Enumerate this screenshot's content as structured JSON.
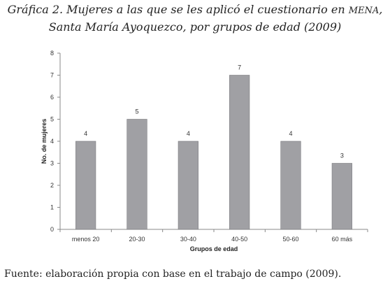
{
  "caption": {
    "line1_prefix": "Gráfica 2. Mujeres a las que se les aplicó el cuestionario en ",
    "line1_acronym": "MENA",
    "line1_suffix": ",",
    "line2": "Santa María Ayoquezco, por grupos de edad (2009)"
  },
  "source": "Fuente: elaboración propia con base en el trabajo de campo (2009).",
  "chart_data": {
    "type": "bar",
    "categories": [
      "menos 20",
      "20-30",
      "30-40",
      "40-50",
      "50-60",
      "60 más"
    ],
    "values": [
      4,
      5,
      4,
      7,
      4,
      3
    ],
    "xlabel": "Grupos de edad",
    "ylabel": "No. de mujeres",
    "ylim": [
      0,
      8
    ],
    "yticks": [
      0,
      1,
      2,
      3,
      4,
      5,
      6,
      7,
      8
    ],
    "bar_color": "#a0a0a4",
    "grid": false,
    "legend": "none"
  }
}
